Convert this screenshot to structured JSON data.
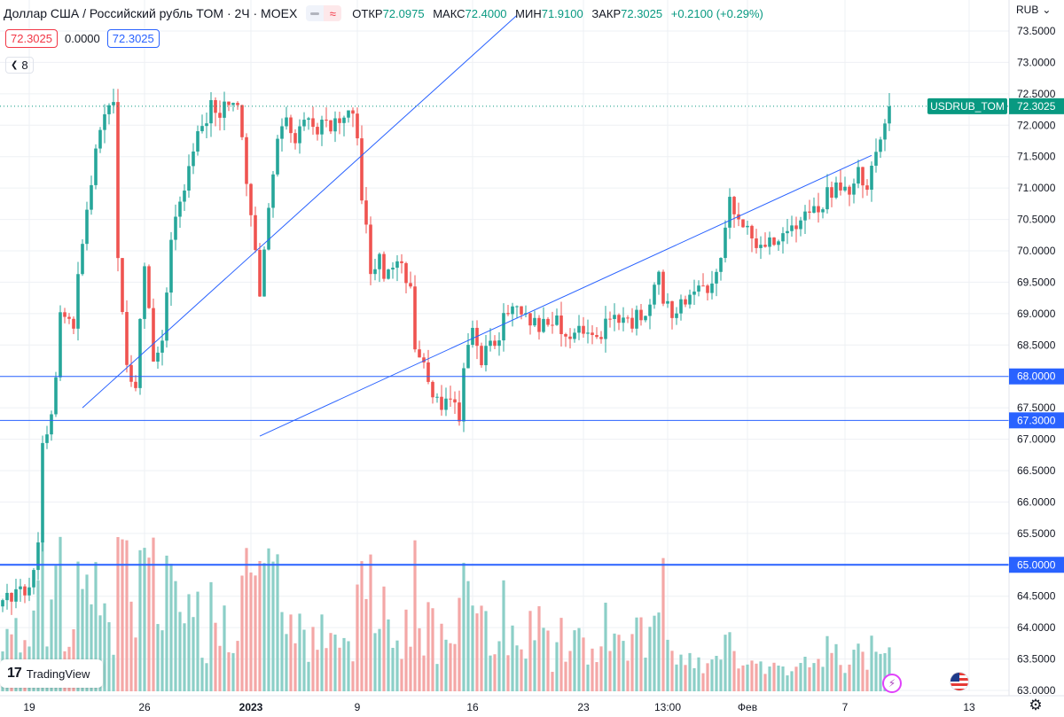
{
  "header": {
    "symbol": "Доллар США / Российский рубль TOM · 2Ч · MOEX",
    "ohlc": {
      "open_label": "ОТКР",
      "open": "72.0975",
      "high_label": "МАКС",
      "high": "72.4000",
      "low_label": "МИН",
      "low": "71.9100",
      "close_label": "ЗАКР",
      "close": "72.3025",
      "change": "+0.2100 (+0.29%)"
    },
    "sell_price": "72.3025",
    "spread": "0.0000",
    "buy_price": "72.3025",
    "indicator_count": "8"
  },
  "currency": "RUB",
  "logo_text": "TradingView",
  "logo_mark": "17",
  "colors": {
    "up": "#26a69a",
    "down": "#ef5350",
    "vol_up": "#8ccfc7",
    "vol_down": "#f4a7a6",
    "line": "#2962ff",
    "grid": "#eef0f4",
    "label_bg": "#2962ff",
    "ticker_bg": "#089981"
  },
  "chart_data": {
    "type": "candlestick",
    "title": "Доллар США / Российский рубль TOM · 2Ч · MOEX",
    "ylim": [
      62.95,
      73.75
    ],
    "y_ticks": [
      "73.5000",
      "73.0000",
      "72.5000",
      "72.0000",
      "71.5000",
      "71.0000",
      "70.5000",
      "70.0000",
      "69.5000",
      "69.0000",
      "68.5000",
      "68.0000",
      "67.5000",
      "67.0000",
      "66.5000",
      "66.0000",
      "65.5000",
      "65.0000",
      "64.5000",
      "64.0000",
      "63.5000",
      "63.0000"
    ],
    "x_ticks": [
      {
        "label": "19",
        "bar": 6
      },
      {
        "label": "26",
        "bar": 32
      },
      {
        "label": "2023",
        "bar": 56,
        "bold": true
      },
      {
        "label": "9",
        "bar": 80
      },
      {
        "label": "16",
        "bar": 106
      },
      {
        "label": "23",
        "bar": 131
      },
      {
        "label": "13:00",
        "bar": 150
      },
      {
        "label": "Фев",
        "bar": 168
      },
      {
        "label": "7",
        "bar": 190
      },
      {
        "label": "13",
        "bar": 218
      }
    ],
    "bar_count": 225,
    "ohlc_anchors": [
      [
        0,
        64.35
      ],
      [
        3,
        64.55
      ],
      [
        6,
        64.7
      ],
      [
        8,
        65.3
      ],
      [
        9,
        66.8
      ],
      [
        11,
        67.3
      ],
      [
        12,
        68.0
      ],
      [
        13,
        68.9
      ],
      [
        16,
        68.9
      ],
      [
        18,
        70.1
      ],
      [
        21,
        71.6
      ],
      [
        23,
        72.1
      ],
      [
        25,
        72.3
      ],
      [
        26,
        69.9
      ],
      [
        28,
        68.1
      ],
      [
        30,
        67.9
      ],
      [
        32,
        69.8
      ],
      [
        34,
        68.2
      ],
      [
        36,
        68.6
      ],
      [
        38,
        70.3
      ],
      [
        41,
        70.9
      ],
      [
        43,
        71.7
      ],
      [
        45,
        71.9
      ],
      [
        47,
        72.4
      ],
      [
        49,
        72.1
      ],
      [
        51,
        72.4
      ],
      [
        53,
        72.3
      ],
      [
        56,
        70.6
      ],
      [
        58,
        69.2
      ],
      [
        60,
        70.7
      ],
      [
        62,
        71.7
      ],
      [
        64,
        72.0
      ],
      [
        66,
        71.8
      ],
      [
        68,
        72.2
      ],
      [
        70,
        71.9
      ],
      [
        72,
        72.05
      ],
      [
        75,
        72.0
      ],
      [
        78,
        72.3
      ],
      [
        80,
        71.8
      ],
      [
        81,
        70.9
      ],
      [
        82,
        70.3
      ],
      [
        83,
        69.7
      ],
      [
        85,
        69.9
      ],
      [
        86,
        69.6
      ],
      [
        88,
        69.8
      ],
      [
        90,
        69.9
      ],
      [
        92,
        69.3
      ],
      [
        93,
        68.4
      ],
      [
        95,
        68.2
      ],
      [
        96,
        67.8
      ],
      [
        98,
        67.55
      ],
      [
        101,
        67.6
      ],
      [
        103,
        67.3
      ],
      [
        104,
        68.2
      ],
      [
        106,
        68.8
      ],
      [
        108,
        68.3
      ],
      [
        110,
        68.5
      ],
      [
        112,
        68.7
      ],
      [
        114,
        69.1
      ],
      [
        116,
        69.2
      ],
      [
        118,
        69.0
      ],
      [
        121,
        68.8
      ],
      [
        124,
        68.9
      ],
      [
        127,
        68.7
      ],
      [
        130,
        68.8
      ],
      [
        133,
        68.6
      ],
      [
        136,
        68.8
      ],
      [
        139,
        68.9
      ],
      [
        142,
        68.9
      ],
      [
        145,
        69.1
      ],
      [
        148,
        69.6
      ],
      [
        149,
        69.2
      ],
      [
        151,
        69.0
      ],
      [
        154,
        69.25
      ],
      [
        157,
        69.4
      ],
      [
        160,
        69.5
      ],
      [
        162,
        69.9
      ],
      [
        164,
        70.8
      ],
      [
        166,
        70.6
      ],
      [
        168,
        70.3
      ],
      [
        170,
        70.0
      ],
      [
        172,
        70.2
      ],
      [
        175,
        70.1
      ],
      [
        177,
        70.3
      ],
      [
        180,
        70.5
      ],
      [
        183,
        70.6
      ],
      [
        186,
        70.9
      ],
      [
        189,
        71.1
      ],
      [
        191,
        70.8
      ],
      [
        193,
        71.2
      ],
      [
        195,
        71.05
      ],
      [
        197,
        71.7
      ],
      [
        199,
        72.1
      ],
      [
        200,
        72.3
      ]
    ],
    "candle_seed": 4242,
    "horizontal_levels": [
      {
        "value": 68.0,
        "label": "68.0000",
        "width": 1
      },
      {
        "value": 67.3,
        "label": "67.3000",
        "width": 1
      },
      {
        "value": 65.0,
        "label": "65.0000",
        "width": 2
      }
    ],
    "trendlines": [
      {
        "from": [
          18,
          67.5
        ],
        "to": [
          116,
          73.75
        ]
      },
      {
        "from": [
          58,
          67.05
        ],
        "to": [
          196,
          71.52
        ]
      }
    ],
    "last_price": {
      "value": 72.3025,
      "label": "72.3025",
      "ticker": "USDRUB_TOM"
    },
    "volume": {
      "max_fraction_of_pane": 1.0,
      "relative_heights": "varies per bar"
    }
  }
}
